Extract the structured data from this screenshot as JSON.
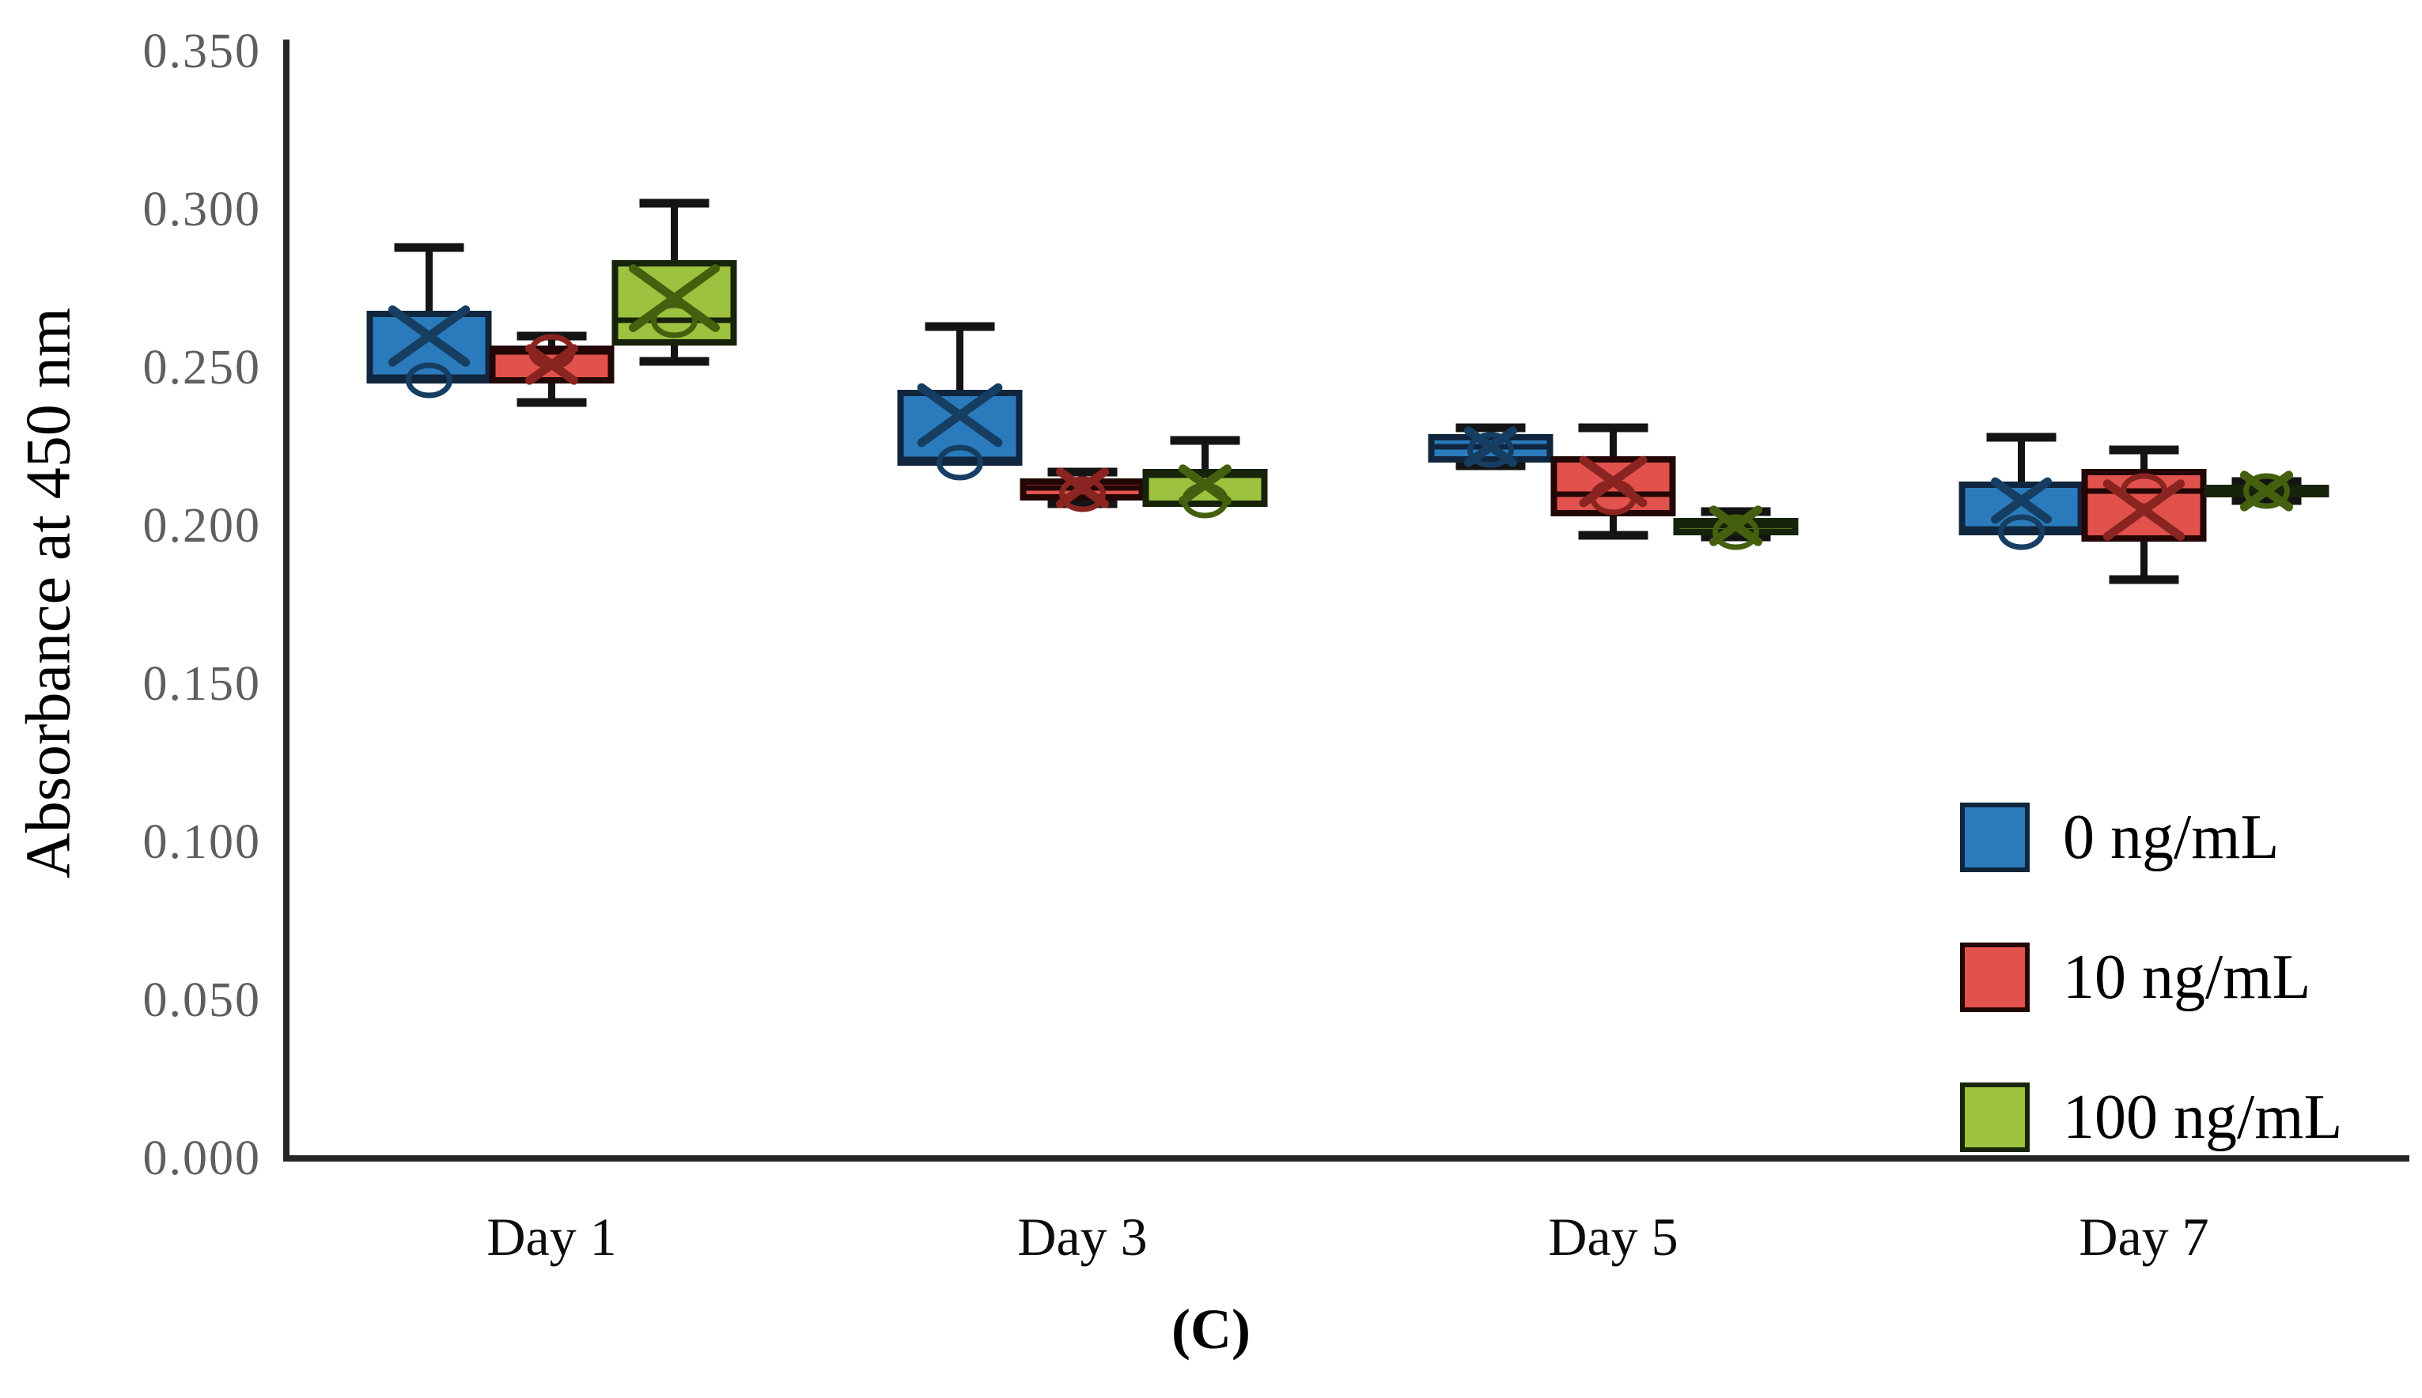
{
  "figure": {
    "caption": "(C)"
  },
  "y_axis": {
    "title": "Absorbance at 450 nm"
  },
  "legend": {
    "items": [
      {
        "label": "0 ng/mL"
      },
      {
        "label": "10 ng/mL"
      },
      {
        "label": "100 ng/mL"
      }
    ]
  },
  "chart_data": {
    "type": "box",
    "title": "",
    "xlabel": "",
    "ylabel": "Absorbance at 450 nm",
    "ylim": [
      0.0,
      0.35
    ],
    "ytick_step": 0.05,
    "yticks": [
      "0.350",
      "0.300",
      "0.250",
      "0.200",
      "0.150",
      "0.100",
      "0.050",
      "0.000"
    ],
    "categories": [
      "Day 1",
      "Day 3",
      "Day 5",
      "Day 7"
    ],
    "legend_position": "lower-right",
    "grid": false,
    "series": [
      {
        "name": "0 ng/mL",
        "color": "#2B7BBC",
        "stroke": "#10263E",
        "marker": "#163E63",
        "boxes": [
          {
            "whisker_low": null,
            "q1": 0.246,
            "median": 0.247,
            "q3": 0.267,
            "whisker_high": 0.288,
            "mean": 0.26,
            "outlier": 0.246
          },
          {
            "whisker_low": null,
            "q1": 0.22,
            "median": 0.221,
            "q3": 0.242,
            "whisker_high": 0.263,
            "mean": 0.235,
            "outlier": 0.22
          },
          {
            "whisker_low": 0.219,
            "q1": 0.221,
            "median": 0.225,
            "q3": 0.228,
            "whisker_high": 0.231,
            "mean": 0.225,
            "outlier": 0.224
          },
          {
            "whisker_low": null,
            "q1": 0.198,
            "median": 0.199,
            "q3": 0.213,
            "whisker_high": 0.228,
            "mean": 0.208,
            "outlier": 0.198
          }
        ]
      },
      {
        "name": "10 ng/mL",
        "color": "#E2524C",
        "stroke": "#230606",
        "marker": "#8A2420",
        "boxes": [
          {
            "whisker_low": 0.239,
            "q1": 0.246,
            "median": 0.255,
            "q3": 0.256,
            "whisker_high": 0.26,
            "mean": 0.251,
            "outlier": 0.255
          },
          {
            "whisker_low": 0.207,
            "q1": 0.209,
            "median": 0.212,
            "q3": 0.214,
            "whisker_high": 0.217,
            "mean": 0.212,
            "outlier": 0.21
          },
          {
            "whisker_low": 0.197,
            "q1": 0.204,
            "median": 0.21,
            "q3": 0.221,
            "whisker_high": 0.231,
            "mean": 0.214,
            "outlier": 0.209
          },
          {
            "whisker_low": 0.183,
            "q1": 0.196,
            "median": 0.211,
            "q3": 0.217,
            "whisker_high": 0.224,
            "mean": 0.205,
            "outlier": 0.211
          }
        ]
      },
      {
        "name": "100 ng/mL",
        "color": "#9CC23F",
        "stroke": "#17230A",
        "marker": "#44600F",
        "boxes": [
          {
            "whisker_low": 0.252,
            "q1": 0.258,
            "median": 0.265,
            "q3": 0.283,
            "whisker_high": 0.302,
            "mean": 0.272,
            "outlier": 0.265
          },
          {
            "whisker_low": null,
            "q1": 0.207,
            "median": 0.216,
            "q3": 0.217,
            "whisker_high": 0.227,
            "mean": 0.213,
            "outlier": 0.208
          },
          {
            "whisker_low": 0.1965,
            "q1": 0.198,
            "median": 0.2,
            "q3": 0.2015,
            "whisker_high": 0.2045,
            "mean": 0.2,
            "outlier": 0.198
          },
          {
            "whisker_low": 0.208,
            "q1": 0.21,
            "median": 0.211,
            "q3": 0.212,
            "whisker_high": 0.214,
            "mean": 0.211,
            "outlier": 0.211
          }
        ]
      }
    ]
  }
}
